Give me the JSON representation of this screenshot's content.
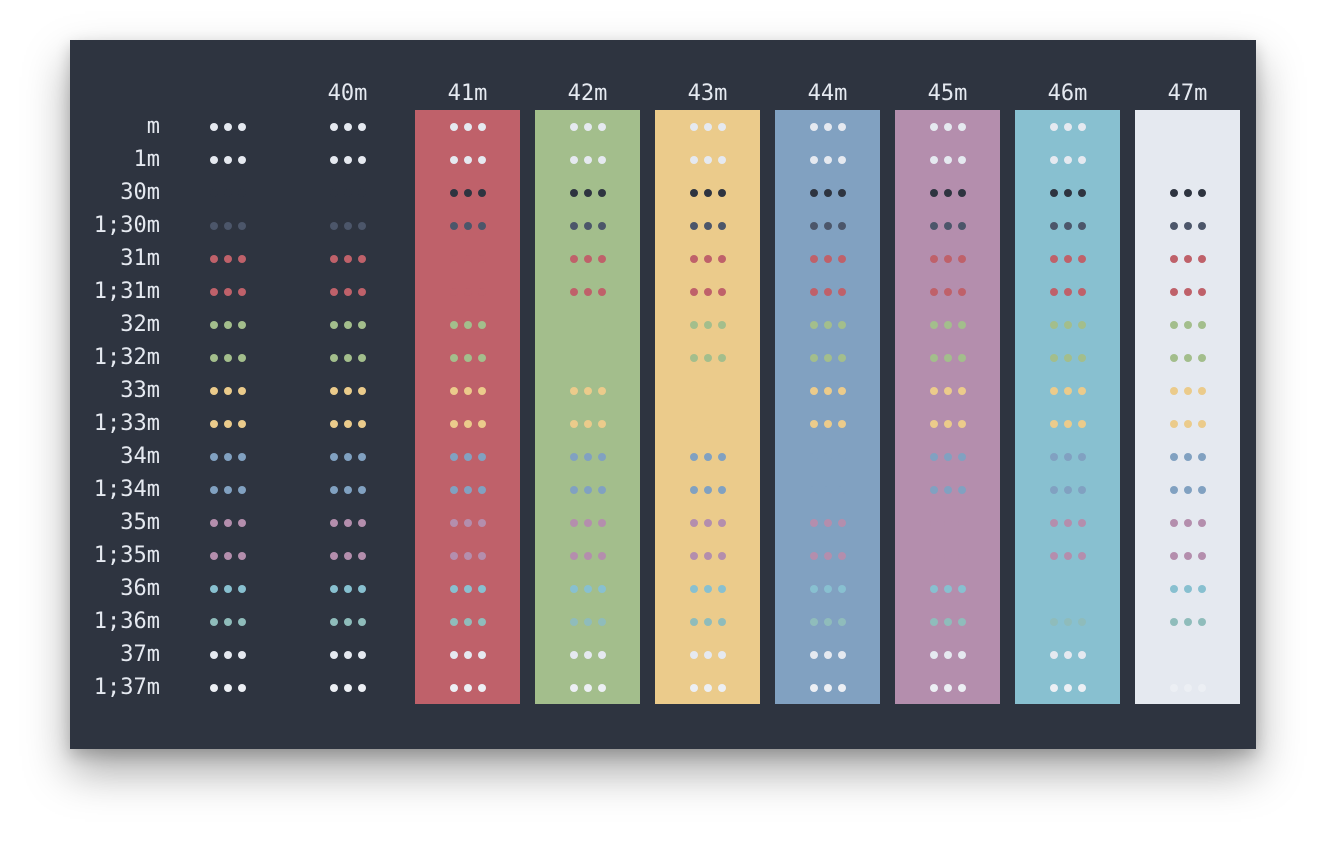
{
  "terminal": {
    "background": "#2e3440",
    "foreground": "#e5e9f0",
    "sample_glyph": "•••",
    "columns": [
      {
        "label": "",
        "bg": null
      },
      {
        "label": "40m",
        "bg": null
      },
      {
        "label": "41m",
        "bg": "#bf616a"
      },
      {
        "label": "42m",
        "bg": "#a3be8c"
      },
      {
        "label": "43m",
        "bg": "#ebcb8b"
      },
      {
        "label": "44m",
        "bg": "#81a1c1"
      },
      {
        "label": "45m",
        "bg": "#b48ead"
      },
      {
        "label": "46m",
        "bg": "#88c0d0"
      },
      {
        "label": "47m",
        "bg": "#e5e9f0"
      }
    ],
    "rows": [
      {
        "label": "m",
        "fg": "#e5e9f0"
      },
      {
        "label": "1m",
        "fg": "#e5e9f0"
      },
      {
        "label": "30m",
        "fg": "#2e3440"
      },
      {
        "label": "1;30m",
        "fg": "#4c566a"
      },
      {
        "label": "31m",
        "fg": "#bf616a"
      },
      {
        "label": "1;31m",
        "fg": "#bf616a"
      },
      {
        "label": "32m",
        "fg": "#a3be8c"
      },
      {
        "label": "1;32m",
        "fg": "#a3be8c"
      },
      {
        "label": "33m",
        "fg": "#ebcb8b"
      },
      {
        "label": "1;33m",
        "fg": "#ebcb8b"
      },
      {
        "label": "34m",
        "fg": "#81a1c1"
      },
      {
        "label": "1;34m",
        "fg": "#81a1c1"
      },
      {
        "label": "35m",
        "fg": "#b48ead"
      },
      {
        "label": "1;35m",
        "fg": "#b48ead"
      },
      {
        "label": "36m",
        "fg": "#88c0d0"
      },
      {
        "label": "1;36m",
        "fg": "#8fbcbb"
      },
      {
        "label": "37m",
        "fg": "#e5e9f0"
      },
      {
        "label": "1;37m",
        "fg": "#eceff4"
      }
    ]
  }
}
